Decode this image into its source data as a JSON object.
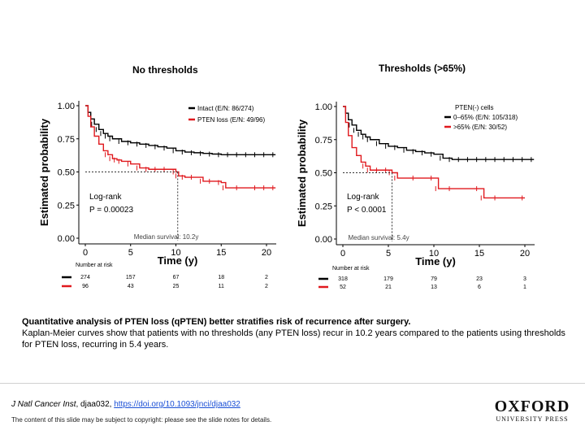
{
  "chart_data": [
    {
      "type": "line",
      "subtype": "kaplan-meier",
      "title": "No thresholds",
      "xlabel": "Time (y)",
      "ylabel": "Estimated probability",
      "xlim": [
        0,
        21
      ],
      "ylim": [
        0,
        1
      ],
      "xticks": [
        "0",
        "5",
        "10",
        "15",
        "20"
      ],
      "yticks": [
        "0.00",
        "0.25",
        "0.50",
        "0.75",
        "1.00"
      ],
      "legend_title": "",
      "legend_position": "top-right",
      "series": [
        {
          "name": "Intact (E/N: 86/274)",
          "color": "#000000",
          "x": [
            0,
            0.3,
            0.6,
            1,
            1.5,
            2,
            2.5,
            3,
            4,
            5,
            6,
            7,
            8,
            9,
            10,
            11,
            12,
            13,
            14,
            15,
            16,
            17,
            18,
            19,
            20,
            21
          ],
          "y": [
            1.0,
            0.95,
            0.9,
            0.86,
            0.82,
            0.79,
            0.77,
            0.75,
            0.73,
            0.72,
            0.71,
            0.7,
            0.69,
            0.68,
            0.66,
            0.65,
            0.645,
            0.64,
            0.635,
            0.63,
            0.63,
            0.63,
            0.63,
            0.63,
            0.63,
            0.63
          ]
        },
        {
          "name": "PTEN loss (E/N: 49/96)",
          "color": "#e0191e",
          "x": [
            0,
            0.3,
            0.6,
            1,
            1.5,
            2,
            2.5,
            3,
            3.5,
            4,
            5,
            6,
            7,
            8,
            9,
            10,
            10.3,
            11,
            12,
            13,
            14,
            15,
            15.5,
            17,
            19,
            20,
            21
          ],
          "y": [
            1.0,
            0.92,
            0.84,
            0.77,
            0.71,
            0.66,
            0.63,
            0.6,
            0.59,
            0.58,
            0.56,
            0.53,
            0.52,
            0.52,
            0.52,
            0.5,
            0.47,
            0.46,
            0.46,
            0.43,
            0.43,
            0.42,
            0.38,
            0.38,
            0.38,
            0.38,
            0.38
          ]
        }
      ],
      "annotations": {
        "test_label": "Log-rank",
        "test_value": "P = 0.00023",
        "median_label": "Median survival: 10.2y",
        "median_x": 10.2,
        "median_y": 0.5
      },
      "risk_table": {
        "title": "Number at risk",
        "times": [
          0,
          5,
          10,
          15,
          20
        ],
        "rows": [
          {
            "color": "#000000",
            "values": [
              "274",
              "157",
              "67",
              "18",
              "2"
            ]
          },
          {
            "color": "#e0191e",
            "values": [
              "96",
              "43",
              "25",
              "11",
              "2"
            ]
          }
        ]
      }
    },
    {
      "type": "line",
      "subtype": "kaplan-meier",
      "title": "Thresholds (>65%)",
      "xlabel": "Time (y)",
      "ylabel": "Estimated probability",
      "xlim": [
        0,
        21
      ],
      "ylim": [
        0,
        1
      ],
      "xticks": [
        "0",
        "5",
        "10",
        "15",
        "20"
      ],
      "yticks": [
        "0.00",
        "0.25",
        "0.50",
        "0.75",
        "1.00"
      ],
      "legend_title": "PTEN(-) cells",
      "legend_position": "top-right",
      "series": [
        {
          "name": "0–65% (E/N: 105/318)",
          "color": "#000000",
          "x": [
            0,
            0.3,
            0.6,
            1,
            1.5,
            2,
            2.5,
            3,
            4,
            5,
            6,
            7,
            8,
            9,
            10,
            11,
            12,
            13,
            14,
            15,
            16,
            17,
            18,
            19,
            20,
            21
          ],
          "y": [
            1.0,
            0.95,
            0.9,
            0.86,
            0.82,
            0.79,
            0.77,
            0.75,
            0.72,
            0.7,
            0.69,
            0.67,
            0.66,
            0.65,
            0.64,
            0.61,
            0.6,
            0.6,
            0.6,
            0.6,
            0.6,
            0.6,
            0.6,
            0.6,
            0.6,
            0.6
          ]
        },
        {
          "name": ">65% (E/N: 30/52)",
          "color": "#e0191e",
          "x": [
            0,
            0.3,
            0.6,
            1,
            1.5,
            2,
            2.5,
            3,
            4,
            5,
            5.4,
            6,
            8,
            10,
            10.5,
            12,
            15,
            15.5,
            17,
            20
          ],
          "y": [
            1.0,
            0.88,
            0.78,
            0.69,
            0.63,
            0.58,
            0.55,
            0.52,
            0.52,
            0.52,
            0.5,
            0.46,
            0.46,
            0.46,
            0.38,
            0.38,
            0.38,
            0.31,
            0.31,
            0.31
          ]
        }
      ],
      "annotations": {
        "test_label": "Log-rank",
        "test_value": "P < 0.0001",
        "median_label": "Median survival: 5.4y",
        "median_x": 5.4,
        "median_y": 0.5
      },
      "risk_table": {
        "title": "Number at risk",
        "times": [
          0,
          5,
          10,
          15,
          20
        ],
        "rows": [
          {
            "color": "#000000",
            "values": [
              "318",
              "179",
              "79",
              "23",
              "3"
            ]
          },
          {
            "color": "#e0191e",
            "values": [
              "52",
              "21",
              "13",
              "6",
              "1"
            ]
          }
        ]
      }
    }
  ],
  "caption": {
    "title": "Quantitative analysis of PTEN loss (qPTEN) better stratifies risk of recurrence after surgery.",
    "body": "Kaplan-Meier curves show that patients with no thresholds (any PTEN loss) recur in 10.2 years compared to the patients using thresholds for PTEN loss, recurring in 5.4 years."
  },
  "footer": {
    "journal": "J Natl Cancer Inst",
    "citation_rest": ", djaa032, ",
    "doi_link": "https://doi.org/10.1093/jnci/djaa032",
    "copyright": "The content of this slide may be subject to copyright: please see the slide notes for details.",
    "publisher_main": "OXFORD",
    "publisher_sub": "UNIVERSITY PRESS"
  }
}
